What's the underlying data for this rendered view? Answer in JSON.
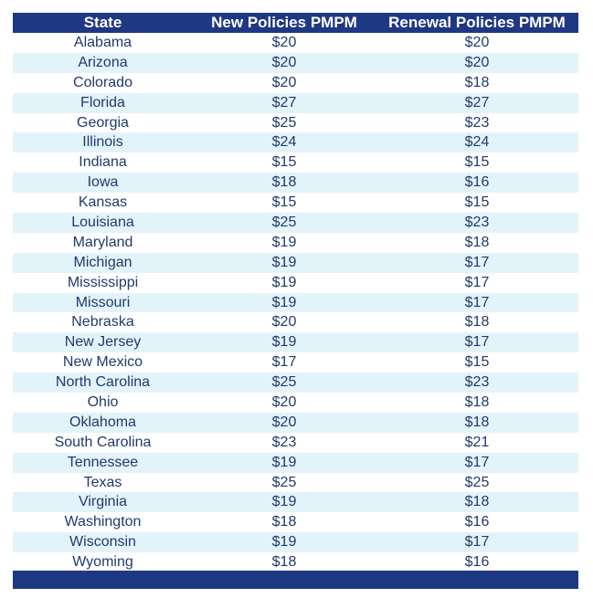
{
  "table": {
    "headers": [
      "State",
      "New Policies PMPM",
      "Renewal Policies PMPM"
    ],
    "rows": [
      [
        "Alabama",
        "$20",
        "$20"
      ],
      [
        "Arizona",
        "$20",
        "$20"
      ],
      [
        "Colorado",
        "$20",
        "$18"
      ],
      [
        "Florida",
        "$27",
        "$27"
      ],
      [
        "Georgia",
        "$25",
        "$23"
      ],
      [
        "Illinois",
        "$24",
        "$24"
      ],
      [
        "Indiana",
        "$15",
        "$15"
      ],
      [
        "Iowa",
        "$18",
        "$16"
      ],
      [
        "Kansas",
        "$15",
        "$15"
      ],
      [
        "Louisiana",
        "$25",
        "$23"
      ],
      [
        "Maryland",
        "$19",
        "$18"
      ],
      [
        "Michigan",
        "$19",
        "$17"
      ],
      [
        "Mississippi",
        "$19",
        "$17"
      ],
      [
        "Missouri",
        "$19",
        "$17"
      ],
      [
        "Nebraska",
        "$20",
        "$18"
      ],
      [
        "New Jersey",
        "$19",
        "$17"
      ],
      [
        "New Mexico",
        "$17",
        "$15"
      ],
      [
        "North Carolina",
        "$25",
        "$23"
      ],
      [
        "Ohio",
        "$20",
        "$18"
      ],
      [
        "Oklahoma",
        "$20",
        "$18"
      ],
      [
        "South Carolina",
        "$23",
        "$21"
      ],
      [
        "Tennessee",
        "$19",
        "$17"
      ],
      [
        "Texas",
        "$25",
        "$25"
      ],
      [
        "Virginia",
        "$19",
        "$18"
      ],
      [
        "Washington",
        "$18",
        "$16"
      ],
      [
        "Wisconsin",
        "$19",
        "$17"
      ],
      [
        "Wyoming",
        "$18",
        "$16"
      ]
    ]
  },
  "colors": {
    "header_bg": "#1f3883",
    "header_text": "#ffffff",
    "alt_row_bg": "#e3f3fa",
    "body_text": "#1f3a6e"
  }
}
